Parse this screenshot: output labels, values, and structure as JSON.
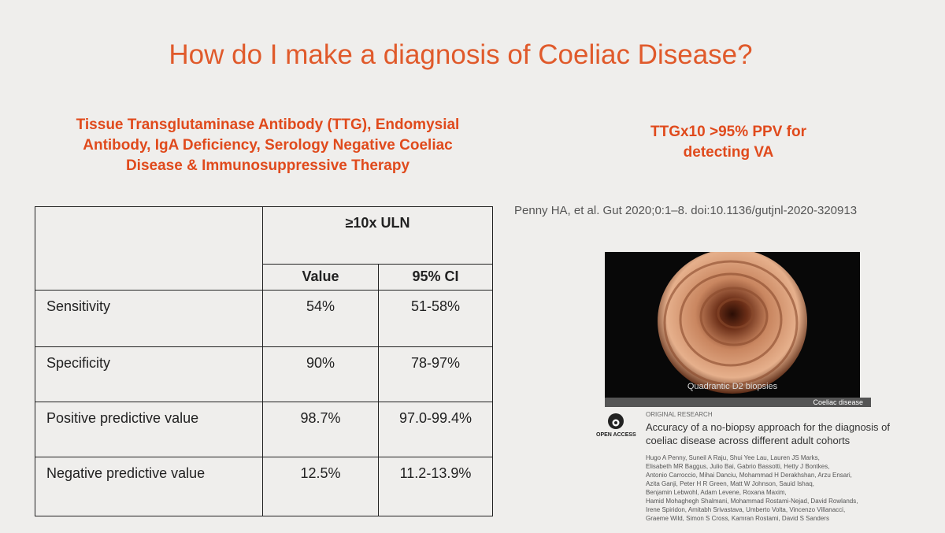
{
  "title": "How do I make a diagnosis of Coeliac Disease?",
  "left_heading": [
    "Tissue Transglutaminase Antibody (TTG), Endomysial",
    "Antibody, IgA Deficiency, Serology Negative Coeliac",
    "Disease & Immunosuppressive Therapy"
  ],
  "right_heading": [
    "TTGx10 >95% PPV for",
    "detecting VA"
  ],
  "citation": "Penny HA, et al. Gut 2020;0:1–8. doi:10.1136/gutjnl-2020-320913",
  "table": {
    "group_header": "≥10x ULN",
    "columns": [
      "Value",
      "95% CI"
    ],
    "rows": [
      [
        "Sensitivity",
        "54%",
        "51-58%"
      ],
      [
        "Specificity",
        "90%",
        "78-97%"
      ],
      [
        "Positive predictive value",
        "98.7%",
        "97.0-99.4%"
      ],
      [
        "Negative predictive value",
        "12.5%",
        "11.2-13.9%"
      ]
    ]
  },
  "image": {
    "caption": "Quadrantic D2 biopsies"
  },
  "paper": {
    "section": "Coeliac disease",
    "category": "ORIGINAL RESEARCH",
    "access": "OPEN ACCESS",
    "title": [
      "Accuracy of a no-biopsy approach for the diagnosis of",
      "coeliac disease across different adult cohorts"
    ],
    "authors": [
      "Hugo A Penny, Suneil A Raju, Shui Yee Lau, Lauren JS Marks,",
      "Elisabeth MR Baggus, Julio Bai, Gabrio Bassotti, Hetty J Bontkes,",
      "Antonio Carroccio, Mihai Danciu, Mohammad H Derakhshan, Arzu Ensari,",
      "Azita Ganji, Peter H R Green, Matt W Johnson, Sauid Ishaq,",
      "Benjamin Lebwohl, Adam Levene, Roxana Maxim,",
      "Hamid Mohaghegh Shalmani, Mohammad Rostami-Nejad, David Rowlands,",
      "Irene Spiridon, Amitabh Srivastava, Umberto Volta, Vincenzo Villanacci,",
      "Graeme Wild, Simon S Cross, Kamran Rostami, David S Sanders"
    ]
  }
}
